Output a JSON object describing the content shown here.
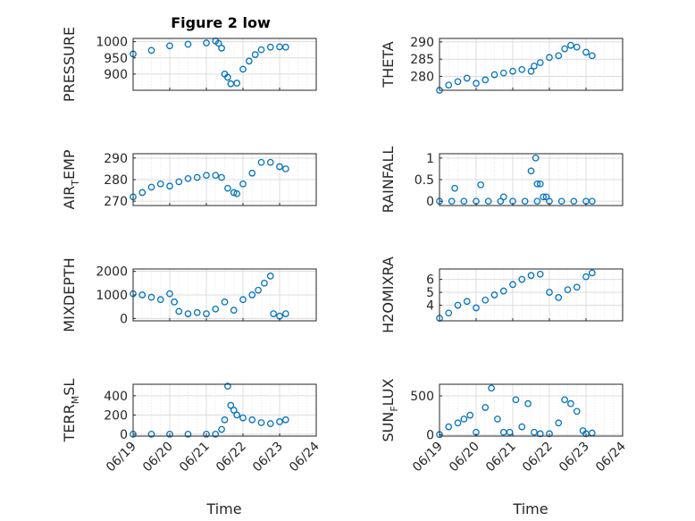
{
  "figure": {
    "title": "Figure 2 low",
    "xlabel": "Time"
  },
  "colors": {
    "marker": "#0072BD",
    "axis": "#262626",
    "grid": "#d9d9d9",
    "background": "#ffffff"
  },
  "chart_data": [
    {
      "type": "scatter",
      "ylabel": "PRESSURE",
      "ylabel_sub": "",
      "xlim": [
        "06/19",
        "06/24"
      ],
      "ylim": [
        850,
        1010
      ],
      "yticks": [
        "900",
        "950",
        "1000"
      ],
      "xticks": [],
      "grid": true,
      "series": [
        {
          "x": [
            "06/19 00:00",
            "06/19 12:00",
            "06/20 00:00",
            "06/20 12:00",
            "06/21 00:00",
            "06/21 06:00",
            "06/21 08:00",
            "06/21 10:00",
            "06/21 12:00",
            "06/21 14:00",
            "06/21 16:00",
            "06/21 20:00",
            "06/22 00:00",
            "06/22 04:00",
            "06/22 08:00",
            "06/22 12:00",
            "06/22 18:00",
            "06/23 00:00",
            "06/23 04:00"
          ],
          "y": [
            962,
            973,
            987,
            992,
            996,
            1002,
            995,
            980,
            900,
            890,
            870,
            872,
            915,
            940,
            960,
            975,
            983,
            984,
            983
          ]
        }
      ]
    },
    {
      "type": "scatter",
      "ylabel": "THETA",
      "ylabel_sub": "",
      "xlim": [
        "06/19",
        "06/24"
      ],
      "ylim": [
        276,
        291
      ],
      "yticks": [
        "280",
        "285",
        "290"
      ],
      "xticks": [],
      "grid": true,
      "series": [
        {
          "x": [
            "06/19 00:00",
            "06/19 06:00",
            "06/19 12:00",
            "06/19 18:00",
            "06/20 00:00",
            "06/20 06:00",
            "06/20 12:00",
            "06/20 18:00",
            "06/21 00:00",
            "06/21 06:00",
            "06/21 12:00",
            "06/21 14:00",
            "06/21 18:00",
            "06/22 00:00",
            "06/22 06:00",
            "06/22 10:00",
            "06/22 14:00",
            "06/22 18:00",
            "06/23 00:00",
            "06/23 04:00"
          ],
          "y": [
            276,
            277.5,
            278.5,
            279.5,
            278,
            279,
            280.5,
            281,
            281.5,
            282,
            281.5,
            283,
            284,
            285.5,
            286,
            288,
            289,
            288.5,
            287,
            286
          ]
        }
      ]
    },
    {
      "type": "scatter",
      "ylabel": "AIR",
      "ylabel_sub": "T",
      "ylabel_rest": "EMP",
      "xlim": [
        "06/19",
        "06/24"
      ],
      "ylim": [
        268,
        292
      ],
      "yticks": [
        "270",
        "280",
        "290"
      ],
      "xticks": [],
      "grid": true,
      "series": [
        {
          "x": [
            "06/19 00:00",
            "06/19 06:00",
            "06/19 12:00",
            "06/19 18:00",
            "06/20 00:00",
            "06/20 06:00",
            "06/20 12:00",
            "06/20 18:00",
            "06/21 00:00",
            "06/21 06:00",
            "06/21 10:00",
            "06/21 14:00",
            "06/21 18:00",
            "06/21 20:00",
            "06/22 00:00",
            "06/22 06:00",
            "06/22 12:00",
            "06/22 18:00",
            "06/23 00:00",
            "06/23 04:00"
          ],
          "y": [
            272,
            274,
            276.5,
            278,
            277,
            279,
            280.5,
            281,
            282,
            282,
            281,
            276,
            274,
            273.5,
            278,
            283,
            288,
            288,
            286,
            285
          ]
        }
      ]
    },
    {
      "type": "scatter",
      "ylabel": "RAINFALL",
      "ylabel_sub": "",
      "xlim": [
        "06/19",
        "06/24"
      ],
      "ylim": [
        -0.1,
        1.1
      ],
      "yticks": [
        "0",
        "0.5",
        "1"
      ],
      "xticks": [],
      "grid": true,
      "series": [
        {
          "x": [
            "06/19 00:00",
            "06/19 08:00",
            "06/19 16:00",
            "06/20 00:00",
            "06/20 08:00",
            "06/20 16:00",
            "06/21 00:00",
            "06/21 08:00",
            "06/21 16:00",
            "06/22 00:00",
            "06/22 08:00",
            "06/22 16:00",
            "06/23 00:00",
            "06/23 04:00",
            "06/19 10:00",
            "06/20 03:00",
            "06/20 18:00",
            "06/21 12:00",
            "06/21 15:00",
            "06/21 16:00",
            "06/21 18:00",
            "06/21 20:00",
            "06/21 22:00"
          ],
          "y": [
            0,
            0,
            0,
            0,
            0,
            0,
            0,
            0,
            0,
            0,
            0,
            0,
            0,
            0,
            0.3,
            0.38,
            0.1,
            0.7,
            1.0,
            0.4,
            0.4,
            0.1,
            0.1
          ]
        }
      ]
    },
    {
      "type": "scatter",
      "ylabel": "MIXDEPTH",
      "ylabel_sub": "",
      "xlim": [
        "06/19",
        "06/24"
      ],
      "ylim": [
        -100,
        2100
      ],
      "yticks": [
        "0",
        "1000",
        "2000"
      ],
      "xticks": [],
      "grid": true,
      "series": [
        {
          "x": [
            "06/19 00:00",
            "06/19 06:00",
            "06/19 12:00",
            "06/19 18:00",
            "06/20 00:00",
            "06/20 03:00",
            "06/20 06:00",
            "06/20 12:00",
            "06/20 18:00",
            "06/21 00:00",
            "06/21 06:00",
            "06/21 12:00",
            "06/21 18:00",
            "06/22 00:00",
            "06/22 06:00",
            "06/22 10:00",
            "06/22 14:00",
            "06/22 18:00",
            "06/22 20:00",
            "06/23 00:00",
            "06/23 04:00"
          ],
          "y": [
            1050,
            1000,
            900,
            800,
            1050,
            700,
            300,
            200,
            250,
            200,
            400,
            700,
            350,
            800,
            1000,
            1200,
            1500,
            1800,
            200,
            100,
            200
          ]
        }
      ]
    },
    {
      "type": "scatter",
      "ylabel": "H2OMIXRA",
      "ylabel_sub": "",
      "xlim": [
        "06/19",
        "06/24"
      ],
      "ylim": [
        2.8,
        6.8
      ],
      "yticks": [
        "4",
        "5",
        "6"
      ],
      "xticks": [],
      "grid": true,
      "series": [
        {
          "x": [
            "06/19 00:00",
            "06/19 06:00",
            "06/19 12:00",
            "06/19 18:00",
            "06/20 00:00",
            "06/20 06:00",
            "06/20 12:00",
            "06/20 18:00",
            "06/21 00:00",
            "06/21 06:00",
            "06/21 12:00",
            "06/21 18:00",
            "06/22 00:00",
            "06/22 06:00",
            "06/22 12:00",
            "06/22 18:00",
            "06/23 00:00",
            "06/23 04:00"
          ],
          "y": [
            3.0,
            3.4,
            4.0,
            4.3,
            3.8,
            4.4,
            4.8,
            5.1,
            5.6,
            6.0,
            6.3,
            6.4,
            5.0,
            4.6,
            5.2,
            5.4,
            6.2,
            6.5
          ]
        }
      ]
    },
    {
      "type": "scatter",
      "ylabel": "TERR",
      "ylabel_sub": "M",
      "ylabel_rest": "SL",
      "xlim": [
        "06/19",
        "06/24"
      ],
      "ylim": [
        -20,
        520
      ],
      "yticks": [
        "0",
        "200",
        "400"
      ],
      "xticks": [
        "06/19",
        "06/20",
        "06/21",
        "06/22",
        "06/23",
        "06/24"
      ],
      "grid": true,
      "series": [
        {
          "x": [
            "06/19 00:00",
            "06/19 12:00",
            "06/20 00:00",
            "06/20 12:00",
            "06/21 00:00",
            "06/21 06:00",
            "06/21 10:00",
            "06/21 12:00",
            "06/21 14:00",
            "06/21 16:00",
            "06/21 18:00",
            "06/21 20:00",
            "06/22 00:00",
            "06/22 06:00",
            "06/22 12:00",
            "06/22 18:00",
            "06/23 00:00",
            "06/23 04:00"
          ],
          "y": [
            0,
            0,
            0,
            0,
            0,
            0,
            50,
            150,
            500,
            300,
            250,
            200,
            170,
            150,
            120,
            110,
            130,
            150
          ]
        }
      ]
    },
    {
      "type": "scatter",
      "ylabel": "SUN",
      "ylabel_sub": "F",
      "ylabel_rest": "LUX",
      "xlim": [
        "06/19",
        "06/24"
      ],
      "ylim": [
        -20,
        650
      ],
      "yticks": [
        "0",
        "500"
      ],
      "xticks": [
        "06/19",
        "06/20",
        "06/21",
        "06/22",
        "06/23",
        "06/24"
      ],
      "grid": true,
      "series": [
        {
          "x": [
            "06/19 00:00",
            "06/19 06:00",
            "06/19 12:00",
            "06/19 16:00",
            "06/19 20:00",
            "06/20 00:00",
            "06/20 06:00",
            "06/20 10:00",
            "06/20 14:00",
            "06/20 18:00",
            "06/20 22:00",
            "06/21 02:00",
            "06/21 06:00",
            "06/21 10:00",
            "06/21 14:00",
            "06/21 18:00",
            "06/22 00:00",
            "06/22 06:00",
            "06/22 10:00",
            "06/22 14:00",
            "06/22 18:00",
            "06/22 22:00",
            "06/23 00:00",
            "06/23 04:00"
          ],
          "y": [
            0,
            100,
            150,
            200,
            250,
            30,
            350,
            600,
            200,
            30,
            30,
            450,
            100,
            400,
            30,
            10,
            10,
            150,
            450,
            400,
            300,
            50,
            10,
            20
          ]
        }
      ]
    }
  ]
}
